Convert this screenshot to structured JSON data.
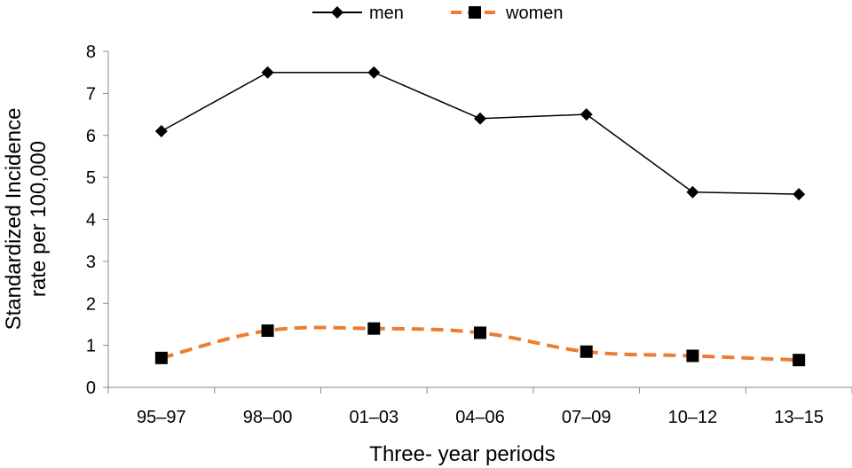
{
  "chart_data": {
    "type": "line",
    "categories": [
      "95–97",
      "98–00",
      "01–03",
      "04–06",
      "07–09",
      "10–12",
      "13–15"
    ],
    "series": [
      {
        "name": "men",
        "values": [
          6.1,
          7.5,
          7.5,
          6.4,
          6.5,
          4.65,
          4.6
        ],
        "color": "#000000",
        "marker": "diamond",
        "line_style": "solid"
      },
      {
        "name": "women",
        "values": [
          0.7,
          1.35,
          1.4,
          1.3,
          0.85,
          0.75,
          0.65
        ],
        "color": "#ED7D31",
        "marker": "square",
        "line_style": "dashed-smooth"
      }
    ],
    "xlabel": "Three- year periods",
    "ylabel_lines": [
      "Standardized Incidence",
      "rate per 100,000"
    ],
    "ylim": [
      0,
      8
    ],
    "yticks": [
      "0",
      "1",
      "2",
      "3",
      "4",
      "5",
      "6",
      "7",
      "8"
    ],
    "legend_position": "top-center",
    "grid": false
  }
}
